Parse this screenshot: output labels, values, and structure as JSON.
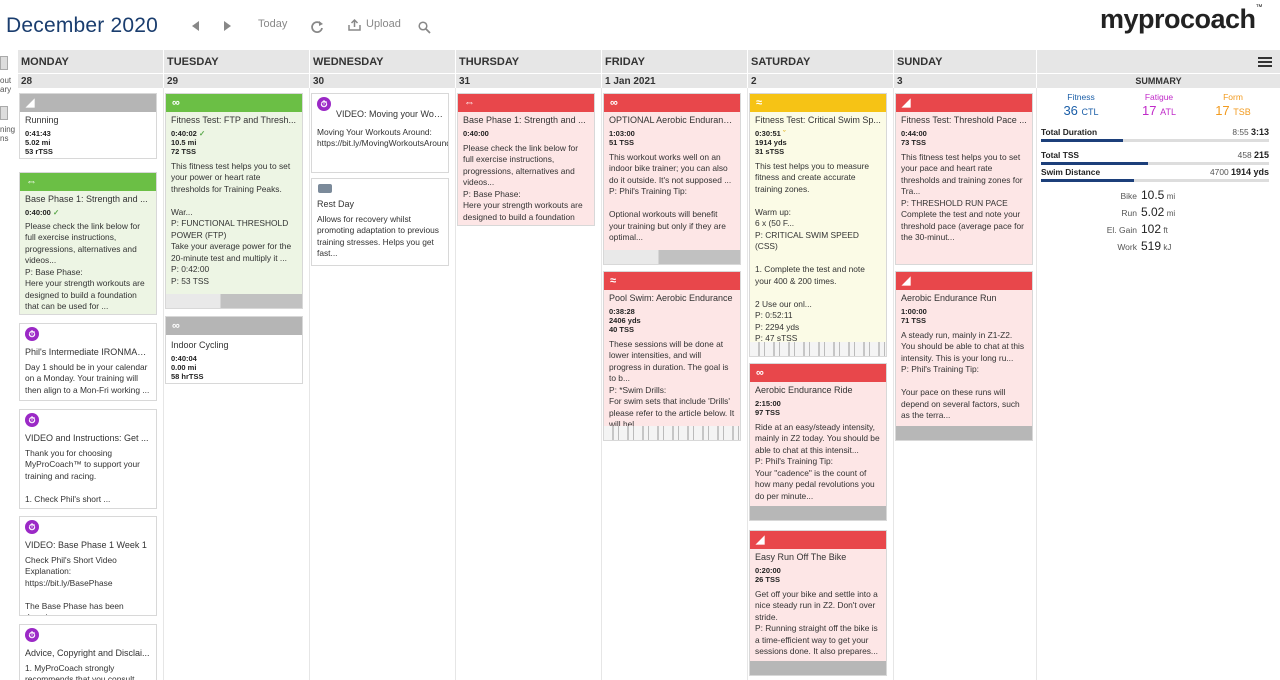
{
  "header": {
    "month": "December 2020",
    "today": "Today",
    "upload": "Upload",
    "brand": "myprocoach",
    "tm": "™"
  },
  "sidebar": {
    "label1a": "out",
    "label1b": "ary",
    "label2a": "ning",
    "label2b": "ns"
  },
  "days": [
    {
      "name": "MONDAY",
      "date": "28"
    },
    {
      "name": "TUESDAY",
      "date": "29"
    },
    {
      "name": "WEDNESDAY",
      "date": "30"
    },
    {
      "name": "THURSDAY",
      "date": "31"
    },
    {
      "name": "FRIDAY",
      "date": "1 Jan 2021"
    },
    {
      "name": "SATURDAY",
      "date": "2"
    },
    {
      "name": "SUNDAY",
      "date": "3"
    }
  ],
  "cards": {
    "mon": [
      {
        "title": "Running",
        "stats": [
          "0:41:43",
          "5.02 mi",
          "53 rTSS"
        ],
        "desc": ""
      },
      {
        "title": "Base Phase 1: Strength and ...",
        "stats": [
          "0:40:00"
        ],
        "desc": "Please check the link below for full exercise instructions, progressions, alternatives and videos...\nP: Base Phase:\nHere your strength workouts are designed to build a foundation that can be used for ...\nP: 0:40:00"
      },
      {
        "title": "Phil's Intermediate IRONMAN...",
        "stats": [],
        "desc": "Day 1 should be in your calendar on a Monday. Your training will then align to a Mon-Fri working ..."
      },
      {
        "title": "VIDEO and Instructions: Get ...",
        "stats": [],
        "desc": "Thank you for choosing MyProCoach™ to support your training and racing.\n\n1. Check Phil's short ..."
      },
      {
        "title": "VIDEO: Base Phase 1 Week 1",
        "stats": [],
        "desc": "Check Phil's Short Video Explanation:\nhttps://bit.ly/BasePhase\n\nThe Base Phase has been descri..."
      },
      {
        "title": "Advice, Copyright and Disclai...",
        "stats": [],
        "desc": "1. MyProCoach strongly recommends that you consult with ..."
      }
    ],
    "tue": [
      {
        "title": "Fitness Test: FTP and Thresh...",
        "stats": [
          "0:40:02",
          "10.5 mi",
          "72 TSS"
        ],
        "desc": "This fitness test helps you to set your power or heart rate thresholds for Training Peaks.\n\nWar...\nP: FUNCTIONAL THRESHOLD POWER (FTP)\nTake your average power for the 20-minute test and multiply it ...\nP: 0:42:00\nP: 53 TSS"
      },
      {
        "title": "Indoor Cycling",
        "stats": [
          "0:40:04",
          "0.00 mi",
          "58 hrTSS"
        ],
        "desc": ""
      }
    ],
    "wed": [
      {
        "title": "VIDEO: Moving your Workout...",
        "stats": [],
        "desc": "Moving Your Workouts Around:\nhttps://bit.ly/MovingWorkoutsAround"
      },
      {
        "title": "Rest Day",
        "stats": [],
        "desc": "Allows for recovery whilst promoting adaptation to previous training stresses. Helps you get fast..."
      }
    ],
    "thu": [
      {
        "title": "Base Phase 1: Strength and ...",
        "stats": [
          "0:40:00"
        ],
        "desc": "Please check the link below for full exercise instructions, progressions, alternatives and videos...\nP: Base Phase:\nHere your strength workouts are designed to build a foundation that can be used for ..."
      }
    ],
    "fri": [
      {
        "title": "OPTIONAL Aerobic Enduranc...",
        "stats": [
          "1:03:00",
          "51 TSS"
        ],
        "desc": "This workout works well on an indoor bike trainer; you can also do it outside. It's not supposed ...\nP: Phil's Training Tip:\n\nOptional workouts will benefit your training but only if they are optimal..."
      },
      {
        "title": "Pool Swim: Aerobic Endurance",
        "stats": [
          "0:38:28",
          "2406 yds",
          "40 TSS"
        ],
        "desc": "These sessions will be done at lower intensities, and will progress in duration. The goal is to b...\nP: *Swim Drills:\nFor swim sets that include 'Drills' please refer to the article below. It will hel..."
      }
    ],
    "sat": [
      {
        "title": "Fitness Test: Critical Swim Sp...",
        "stats": [
          "0:30:51",
          "1914 yds",
          "31 sTSS"
        ],
        "desc": "This test helps you to measure fitness and create accurate training zones.\n\nWarm up:\n6 x (50 F...\nP: CRITICAL SWIM SPEED (CSS)\n\n1. Complete the test and note your 400 & 200 times.\n\n2 Use our onl...\nP: 0:52:11\nP: 2294 yds\nP: 47 sTSS"
      },
      {
        "title": "Aerobic Endurance Ride",
        "stats": [
          "2:15:00",
          "97 TSS"
        ],
        "desc": "Ride at an easy/steady intensity, mainly in Z2 today. You should be able to chat at this intensit...\nP: Phil's Training Tip:\nYour \"cadence\" is the count of how many pedal revolutions you do per minute..."
      },
      {
        "title": "Easy Run Off The Bike",
        "stats": [
          "0:20:00",
          "26 TSS"
        ],
        "desc": "Get off your bike and settle into a nice steady run in Z2. Don't over stride.\nP: Running straight off the bike is a time-efficient way to get your sessions done. It also prepares..."
      }
    ],
    "sun": [
      {
        "title": "Fitness Test: Threshold Pace ...",
        "stats": [
          "0:44:00",
          "73 TSS"
        ],
        "desc": "This fitness test helps you to set your pace and heart rate thresholds and training zones for Tra...\nP: THRESHOLD RUN PACE\nComplete the test and note your threshold pace (average pace for the 30-minut..."
      },
      {
        "title": "Aerobic Endurance Run",
        "stats": [
          "1:00:00",
          "71 TSS"
        ],
        "desc": "A steady run, mainly in Z1-Z2. You should be able to chat at this intensity. This is your long ru...\nP: Phil's Training Tip:\n\nYour pace on these runs will depend on several factors, such as the terra..."
      }
    ]
  },
  "summary": {
    "title": "SUMMARY",
    "fitness": {
      "label": "Fitness",
      "value": "36",
      "unit": "CTL",
      "color": "#1c5fa8"
    },
    "fatigue": {
      "label": "Fatigue",
      "value": "17",
      "unit": "ATL",
      "color": "#c02ac9"
    },
    "form": {
      "label": "Form",
      "value": "17",
      "unit": "TSB",
      "color": "#f29a1e"
    },
    "total_duration": {
      "label": "Total Duration",
      "planned": "8:55",
      "actual": "3:13",
      "progress": 0.36
    },
    "total_tss": {
      "label": "Total TSS",
      "planned": "458",
      "actual": "215",
      "progress": 0.47
    },
    "swim_distance": {
      "label": "Swim Distance",
      "planned": "4700",
      "actual": "1914 yds",
      "progress": 0.41
    },
    "metrics": [
      {
        "label": "Bike",
        "value": "10.5",
        "unit": "mi"
      },
      {
        "label": "Run",
        "value": "5.02",
        "unit": "mi"
      },
      {
        "label": "El. Gain",
        "value": "102",
        "unit": "ft"
      },
      {
        "label": "Work",
        "value": "519",
        "unit": "kJ"
      }
    ]
  }
}
